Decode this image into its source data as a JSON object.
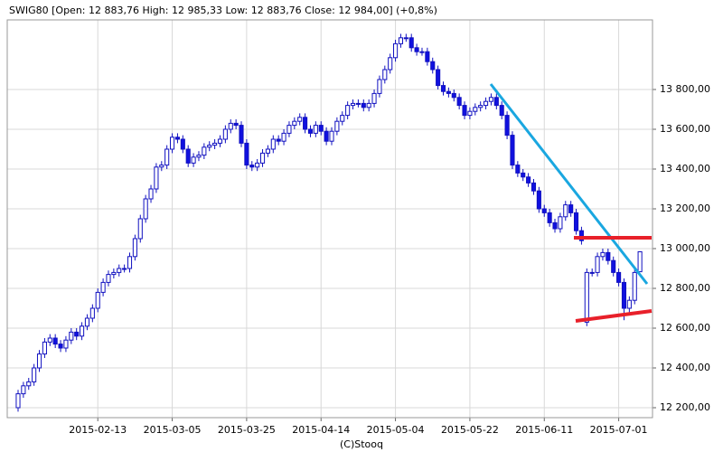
{
  "chart_data": {
    "type": "candlestick",
    "title": "SWIG80 [Open: 12 883,76  High: 12 985,33  Low: 12 883,76  Close: 12 984,00]  (+0,8%)",
    "source": "(C)Stooq",
    "categories": [
      "2015-01-23",
      "2015-01-26",
      "2015-01-27",
      "2015-01-28",
      "2015-01-29",
      "2015-01-30",
      "2015-02-02",
      "2015-02-03",
      "2015-02-04",
      "2015-02-05",
      "2015-02-06",
      "2015-02-09",
      "2015-02-10",
      "2015-02-11",
      "2015-02-12",
      "2015-02-13",
      "2015-02-16",
      "2015-02-17",
      "2015-02-18",
      "2015-02-19",
      "2015-02-20",
      "2015-02-23",
      "2015-02-24",
      "2015-02-25",
      "2015-02-26",
      "2015-02-27",
      "2015-03-02",
      "2015-03-03",
      "2015-03-04",
      "2015-03-05",
      "2015-03-06",
      "2015-03-09",
      "2015-03-10",
      "2015-03-11",
      "2015-03-12",
      "2015-03-13",
      "2015-03-16",
      "2015-03-17",
      "2015-03-18",
      "2015-03-19",
      "2015-03-20",
      "2015-03-23",
      "2015-03-24",
      "2015-03-25",
      "2015-03-26",
      "2015-03-27",
      "2015-03-30",
      "2015-03-31",
      "2015-04-01",
      "2015-04-02",
      "2015-04-03",
      "2015-04-06",
      "2015-04-07",
      "2015-04-08",
      "2015-04-09",
      "2015-04-10",
      "2015-04-13",
      "2015-04-14",
      "2015-04-15",
      "2015-04-16",
      "2015-04-17",
      "2015-04-20",
      "2015-04-21",
      "2015-04-22",
      "2015-04-23",
      "2015-04-24",
      "2015-04-27",
      "2015-04-28",
      "2015-04-29",
      "2015-04-30",
      "2015-05-01",
      "2015-05-04",
      "2015-05-05",
      "2015-05-06",
      "2015-05-07",
      "2015-05-08",
      "2015-05-11",
      "2015-05-12",
      "2015-05-13",
      "2015-05-14",
      "2015-05-15",
      "2015-05-18",
      "2015-05-19",
      "2015-05-20",
      "2015-05-21",
      "2015-05-22",
      "2015-05-25",
      "2015-05-26",
      "2015-05-27",
      "2015-05-28",
      "2015-05-29",
      "2015-06-01",
      "2015-06-02",
      "2015-06-03",
      "2015-06-04",
      "2015-06-05",
      "2015-06-08",
      "2015-06-09",
      "2015-06-10",
      "2015-06-11",
      "2015-06-12",
      "2015-06-15",
      "2015-06-16",
      "2015-06-17",
      "2015-06-18",
      "2015-06-19",
      "2015-06-22",
      "2015-06-23",
      "2015-06-24",
      "2015-06-25",
      "2015-06-26",
      "2015-06-29",
      "2015-06-30",
      "2015-07-01",
      "2015-07-02",
      "2015-07-03",
      "2015-07-06",
      "2015-07-07"
    ],
    "open": [
      12200,
      12270,
      12310,
      12330,
      12400,
      12470,
      12530,
      12550,
      12520,
      12500,
      12540,
      12580,
      12560,
      12610,
      12650,
      12700,
      12780,
      12830,
      12870,
      12880,
      12900,
      12900,
      12960,
      13050,
      13150,
      13250,
      13300,
      13410,
      13420,
      13500,
      13560,
      13550,
      13500,
      13430,
      13460,
      13470,
      13510,
      13520,
      13530,
      13550,
      13600,
      13630,
      13620,
      13530,
      13420,
      13410,
      13430,
      13480,
      13500,
      13550,
      13540,
      13580,
      13620,
      13640,
      13660,
      13600,
      13580,
      13620,
      13590,
      13540,
      13590,
      13640,
      13670,
      13720,
      13730,
      13730,
      13710,
      13730,
      13780,
      13850,
      13900,
      13960,
      14030,
      14060,
      14060,
      14010,
      13990,
      13990,
      13940,
      13900,
      13820,
      13790,
      13780,
      13760,
      13720,
      13670,
      13690,
      13710,
      13720,
      13740,
      13760,
      13720,
      13670,
      13570,
      13420,
      13380,
      13360,
      13330,
      13290,
      13200,
      13180,
      13130,
      13100,
      13160,
      13220,
      13180,
      13090,
      12630,
      12880,
      12880,
      12960,
      12980,
      12940,
      12880,
      12830,
      12700,
      12740,
      12883.76
    ],
    "high": [
      12290,
      12330,
      12350,
      12420,
      12490,
      12550,
      12570,
      12570,
      12540,
      12560,
      12600,
      12600,
      12630,
      12670,
      12720,
      12800,
      12850,
      12890,
      12900,
      12920,
      12920,
      12980,
      13070,
      13170,
      13270,
      13320,
      13430,
      13440,
      13520,
      13580,
      13580,
      13570,
      13520,
      13480,
      13490,
      13530,
      13540,
      13550,
      13570,
      13620,
      13650,
      13650,
      13640,
      13550,
      13440,
      13450,
      13500,
      13520,
      13570,
      13570,
      13600,
      13640,
      13660,
      13680,
      13680,
      13620,
      13640,
      13640,
      13610,
      13610,
      13660,
      13690,
      13740,
      13750,
      13750,
      13750,
      13750,
      13800,
      13870,
      13920,
      13980,
      14050,
      14080,
      14080,
      14080,
      14030,
      14010,
      14010,
      13960,
      13920,
      13840,
      13810,
      13800,
      13780,
      13740,
      13710,
      13730,
      13740,
      13760,
      13780,
      13780,
      13740,
      13690,
      13590,
      13440,
      13400,
      13380,
      13350,
      13310,
      13220,
      13200,
      13150,
      13180,
      13240,
      13240,
      13200,
      13110,
      12900,
      12900,
      12980,
      13000,
      13000,
      12960,
      12900,
      12850,
      12760,
      12900,
      12985.33
    ],
    "low": [
      12180,
      12250,
      12290,
      12310,
      12380,
      12450,
      12510,
      12500,
      12480,
      12480,
      12520,
      12540,
      12540,
      12590,
      12630,
      12680,
      12760,
      12810,
      12850,
      12860,
      12880,
      12880,
      12940,
      13030,
      13130,
      13230,
      13280,
      13390,
      13400,
      13480,
      13530,
      13480,
      13410,
      13410,
      13440,
      13450,
      13490,
      13500,
      13510,
      13530,
      13580,
      13600,
      13510,
      13400,
      13390,
      13390,
      13410,
      13460,
      13480,
      13520,
      13520,
      13560,
      13600,
      13620,
      13580,
      13560,
      13560,
      13570,
      13520,
      13520,
      13570,
      13620,
      13650,
      13700,
      13710,
      13690,
      13690,
      13710,
      13760,
      13830,
      13880,
      13940,
      14010,
      14040,
      13990,
      13970,
      13970,
      13920,
      13880,
      13800,
      13770,
      13760,
      13740,
      13700,
      13650,
      13650,
      13670,
      13690,
      13700,
      13720,
      13700,
      13650,
      13550,
      13400,
      13360,
      13340,
      13310,
      13270,
      13180,
      13160,
      13110,
      13080,
      13080,
      13140,
      13160,
      13070,
      13020,
      12610,
      12860,
      12860,
      12940,
      12920,
      12860,
      12810,
      12640,
      12680,
      12720,
      12883.76
    ],
    "close": [
      12270,
      12310,
      12330,
      12400,
      12470,
      12530,
      12550,
      12520,
      12500,
      12540,
      12580,
      12560,
      12610,
      12650,
      12700,
      12780,
      12830,
      12870,
      12880,
      12900,
      12900,
      12960,
      13050,
      13150,
      13250,
      13300,
      13410,
      13420,
      13500,
      13560,
      13550,
      13500,
      13430,
      13460,
      13470,
      13510,
      13520,
      13530,
      13550,
      13600,
      13630,
      13620,
      13530,
      13420,
      13410,
      13430,
      13480,
      13500,
      13550,
      13540,
      13580,
      13620,
      13640,
      13660,
      13600,
      13580,
      13620,
      13590,
      13540,
      13590,
      13640,
      13670,
      13720,
      13730,
      13730,
      13710,
      13730,
      13780,
      13850,
      13900,
      13960,
      14030,
      14060,
      14060,
      14010,
      13990,
      13990,
      13940,
      13900,
      13820,
      13790,
      13780,
      13760,
      13720,
      13670,
      13690,
      13710,
      13720,
      13740,
      13760,
      13720,
      13670,
      13570,
      13420,
      13380,
      13360,
      13330,
      13290,
      13200,
      13180,
      13130,
      13100,
      13160,
      13220,
      13180,
      13090,
      13040,
      12880,
      12880,
      12960,
      12980,
      12940,
      12880,
      12830,
      12700,
      12740,
      12880,
      12984
    ],
    "up_color": "#ffffff",
    "down_color": "#1010e0",
    "edge_color": "#1010c0",
    "ylim": [
      12150,
      14150
    ],
    "yticks": [
      {
        "value": 12200,
        "label": "12 200,00"
      },
      {
        "value": 12400,
        "label": "12 400,00"
      },
      {
        "value": 12600,
        "label": "12 600,00"
      },
      {
        "value": 12800,
        "label": "12 800,00"
      },
      {
        "value": 13000,
        "label": "13 000,00"
      },
      {
        "value": 13200,
        "label": "13 200,00"
      },
      {
        "value": 13400,
        "label": "13 400,00"
      },
      {
        "value": 13600,
        "label": "13 600,00"
      },
      {
        "value": 13800,
        "label": "13 800,00"
      }
    ],
    "xticks": [
      "2015-02-13",
      "2015-03-05",
      "2015-03-25",
      "2015-04-14",
      "2015-05-04",
      "2015-05-22",
      "2015-06-11",
      "2015-07-01"
    ],
    "grid": true
  }
}
